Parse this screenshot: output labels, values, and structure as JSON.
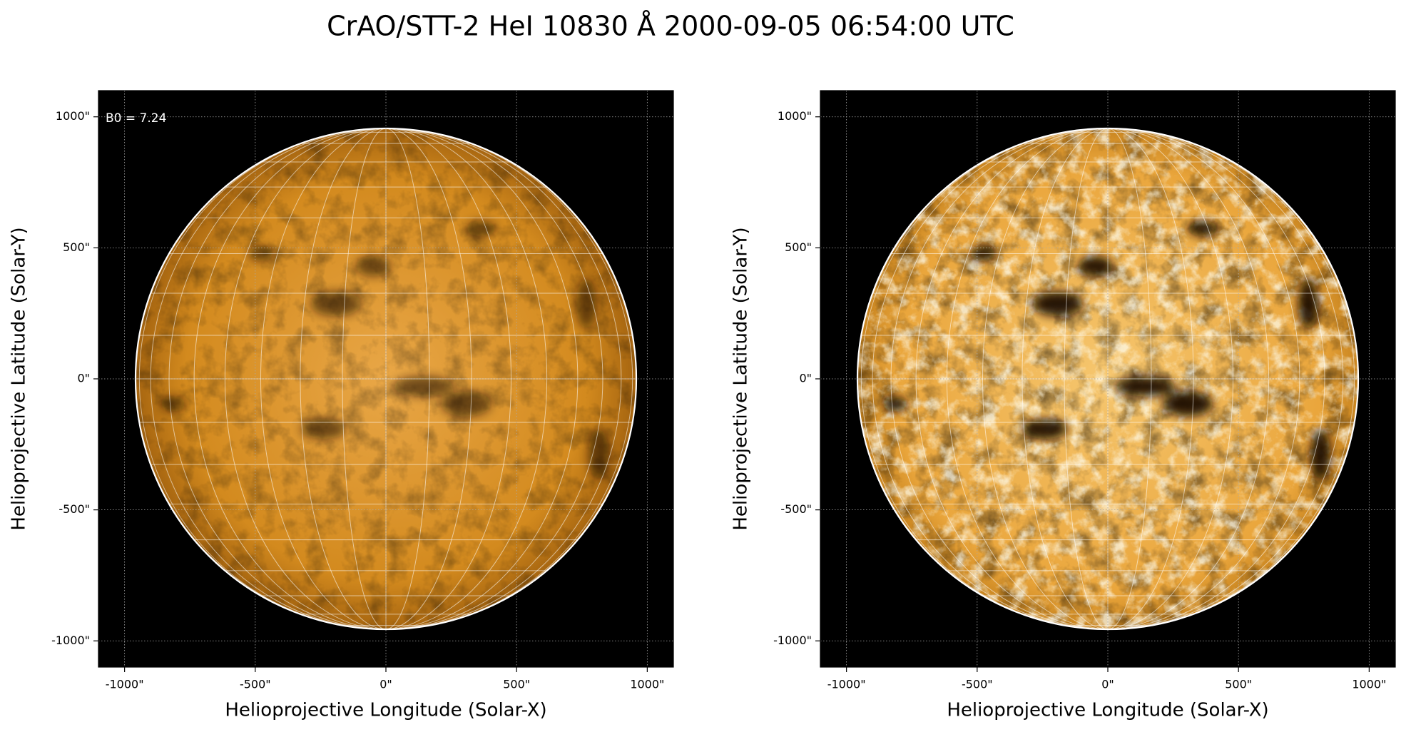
{
  "title": "CrAO/STT-2 HeI 10830 Å 2000-09-05 06:54:00 UTC",
  "chart_data": [
    {
      "type": "image",
      "annotation": "B0 = 7.24",
      "xlabel": "Helioprojective Longitude (Solar-X)",
      "ylabel": "Helioprojective Latitude (Solar-Y)",
      "xlim": [
        -1100,
        1100
      ],
      "ylim": [
        -1100,
        1100
      ],
      "xticks": [
        {
          "value": -1000,
          "label": "-1000\""
        },
        {
          "value": -500,
          "label": "-500\""
        },
        {
          "value": 0,
          "label": "0\""
        },
        {
          "value": 500,
          "label": "500\""
        },
        {
          "value": 1000,
          "label": "1000\""
        }
      ],
      "yticks": [
        {
          "value": -1000,
          "label": "-1000\""
        },
        {
          "value": -500,
          "label": "-500\""
        },
        {
          "value": 0,
          "label": "0\""
        },
        {
          "value": 500,
          "label": "500\""
        },
        {
          "value": 1000,
          "label": "1000\""
        }
      ],
      "grid": true
    },
    {
      "type": "image",
      "xlabel": "Helioprojective Longitude (Solar-X)",
      "ylabel": "Helioprojective Latitude (Solar-Y)",
      "xlim": [
        -1100,
        1100
      ],
      "ylim": [
        -1100,
        1100
      ],
      "xticks": [
        {
          "value": -1000,
          "label": "-1000\""
        },
        {
          "value": -500,
          "label": "-500\""
        },
        {
          "value": 0,
          "label": "0\""
        },
        {
          "value": 500,
          "label": "500\""
        },
        {
          "value": 1000,
          "label": "1000\""
        }
      ],
      "yticks": [
        {
          "value": -1000,
          "label": "-1000\""
        },
        {
          "value": -500,
          "label": "-500\""
        },
        {
          "value": 0,
          "label": "0\""
        },
        {
          "value": 500,
          "label": "500\""
        },
        {
          "value": 1000,
          "label": "1000\""
        }
      ],
      "grid": true
    }
  ]
}
